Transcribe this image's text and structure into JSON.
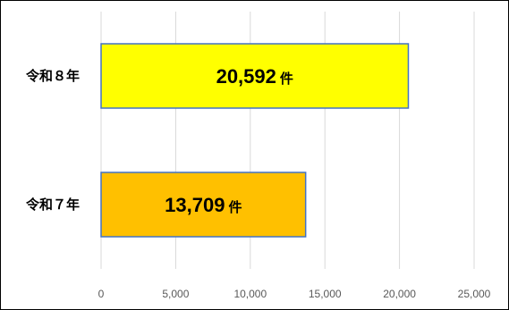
{
  "chart_data": {
    "type": "bar",
    "orientation": "horizontal",
    "categories": [
      "令和８年",
      "令和７年"
    ],
    "values": [
      20592,
      13709
    ],
    "value_labels": [
      "20,592",
      "13,709"
    ],
    "unit": "件",
    "xlim": [
      0,
      25000
    ],
    "xticks": [
      0,
      5000,
      10000,
      15000,
      20000,
      25000
    ],
    "xtick_labels": [
      "0",
      "5,000",
      "10,000",
      "15,000",
      "20,000",
      "25,000"
    ],
    "grid": "vertical",
    "legend": "none",
    "colors": [
      "#ffff00",
      "#ffc000"
    ],
    "bar_border": "#4472c4",
    "grid_color": "#d9d9d9"
  }
}
